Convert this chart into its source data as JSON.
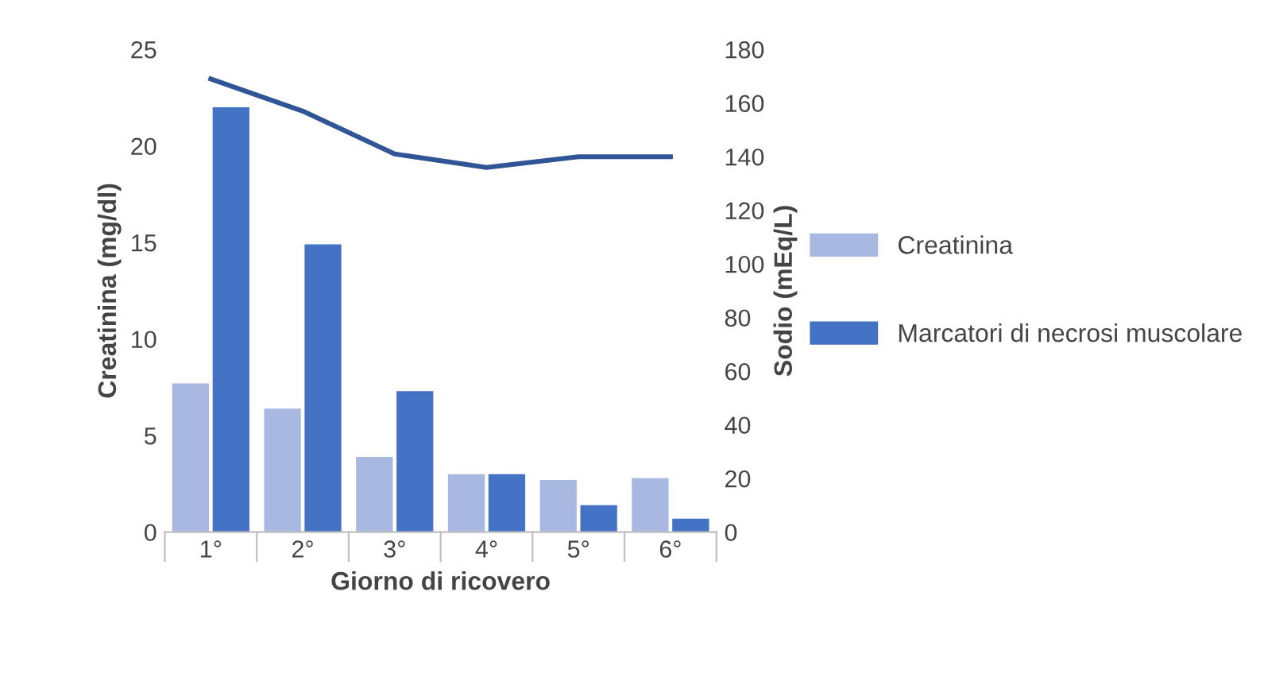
{
  "chart_data": {
    "type": "bar",
    "xlabel": "Giorno di ricovero",
    "ylabel": "Creatinina (mg/dl)",
    "y2label": "Sodio (mEq/L)",
    "categories": [
      "1°",
      "2°",
      "3°",
      "4°",
      "5°",
      "6°"
    ],
    "series": [
      {
        "name": "Creatinina",
        "color": "#a9b8e0",
        "values": [
          7.7,
          6.4,
          3.9,
          3.0,
          2.7,
          2.8
        ]
      },
      {
        "name": "Marcatori di necrosi muscolare",
        "color": "#4472c4",
        "values": [
          22.0,
          14.9,
          7.3,
          3.0,
          1.4,
          0.7
        ]
      },
      {
        "type": "line",
        "axis": "y2",
        "color": "#2f5597",
        "values": [
          169,
          157,
          141,
          136,
          140,
          140
        ]
      }
    ],
    "ylim": [
      0,
      25
    ],
    "yticks": [
      0,
      5,
      10,
      15,
      20,
      25
    ],
    "y2lim": [
      0,
      180
    ],
    "y2ticks": [
      0,
      20,
      40,
      60,
      80,
      100,
      120,
      140,
      160,
      180
    ],
    "grid": false,
    "legend": "right"
  }
}
